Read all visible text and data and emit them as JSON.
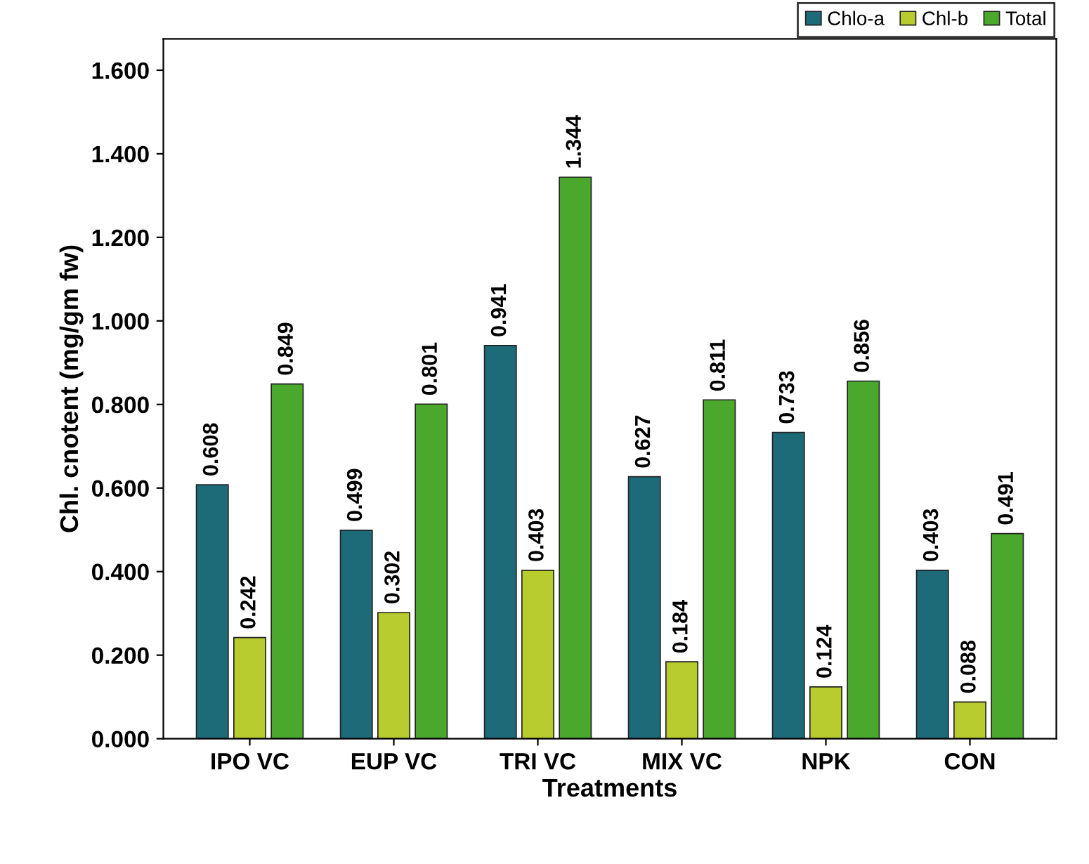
{
  "chart_data": {
    "type": "bar",
    "xlabel": "Treatments",
    "ylabel": "Chl. cnotent (mg/gm fw)",
    "categories": [
      "IPO VC",
      "EUP VC",
      "TRI VC",
      "MIX VC",
      "NPK",
      "CON"
    ],
    "series": [
      {
        "name": "Chlo-a",
        "color": "#1d6b78",
        "values": [
          0.608,
          0.499,
          0.941,
          0.627,
          0.733,
          0.403
        ]
      },
      {
        "name": "Chl-b",
        "color": "#b8cc30",
        "values": [
          0.242,
          0.302,
          0.403,
          0.184,
          0.124,
          0.088
        ]
      },
      {
        "name": "Total",
        "color": "#4aa92c",
        "values": [
          0.849,
          0.801,
          1.344,
          0.811,
          0.856,
          0.491
        ]
      }
    ],
    "ylim": [
      0,
      1.675
    ],
    "yticks": [
      {
        "value": 0,
        "label": "0.000"
      },
      {
        "value": 0.2,
        "label": "0.200"
      },
      {
        "value": 0.4,
        "label": "0.400"
      },
      {
        "value": 0.6,
        "label": "0.600"
      },
      {
        "value": 0.8,
        "label": "0.800"
      },
      {
        "value": 1.0,
        "label": "1.000"
      },
      {
        "value": 1.2,
        "label": "1.200"
      },
      {
        "value": 1.4,
        "label": "1.400"
      },
      {
        "value": 1.6,
        "label": "1.600"
      }
    ],
    "data_labels": true,
    "grid": false,
    "legend": "top right"
  }
}
